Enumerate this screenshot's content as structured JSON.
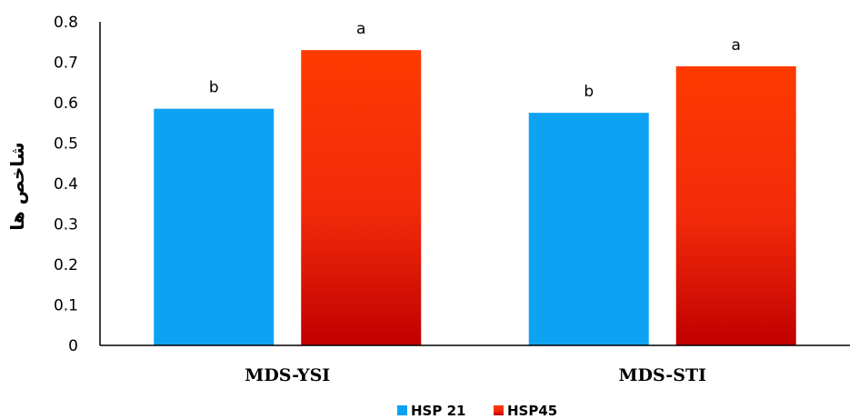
{
  "chart_data": {
    "type": "bar",
    "categories": [
      "MDS-YSI",
      "MDS-STI"
    ],
    "series": [
      {
        "name": "HSP 21",
        "values": [
          0.585,
          0.575
        ],
        "labels": [
          "b",
          "b"
        ],
        "color": "#0da2f2"
      },
      {
        "name": "HSP45",
        "values": [
          0.73,
          0.69
        ],
        "labels": [
          "a",
          "a"
        ],
        "color": "#ff3300"
      }
    ],
    "ylabel": "شاخص ها",
    "xlabel": "",
    "ylim": [
      0,
      0.8
    ],
    "yticks": [
      "0",
      "0.1",
      "0.2",
      "0.3",
      "0.4",
      "0.5",
      "0.6",
      "0.7",
      "0.8"
    ],
    "grid": false,
    "legend_position": "bottom"
  }
}
